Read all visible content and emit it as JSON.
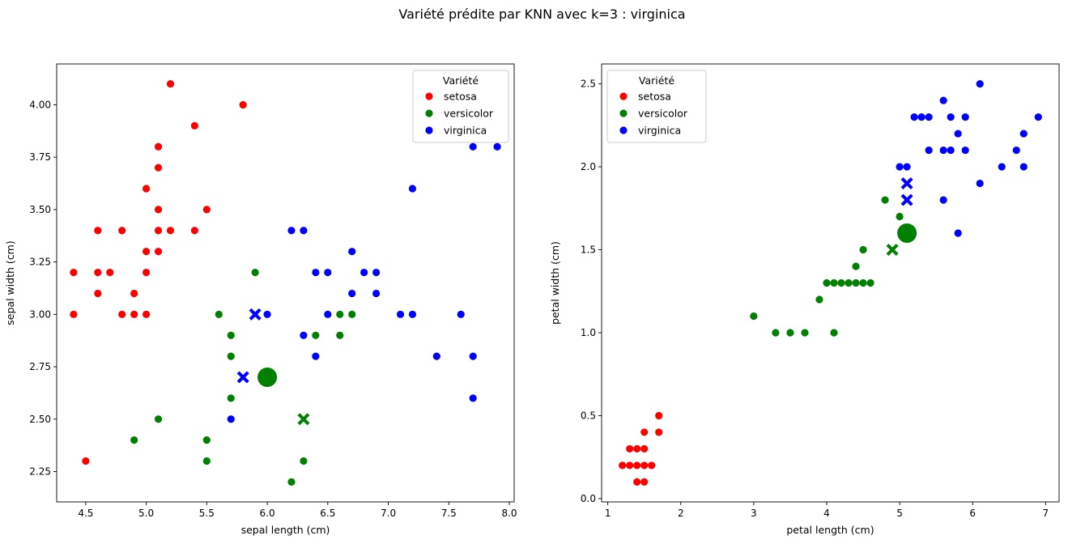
{
  "figure": {
    "title": "Variété prédite par KNN avec k=3 : virginica"
  },
  "colors": {
    "setosa": "#ff0000",
    "versicolor": "#008000",
    "virginica": "#0000ff"
  },
  "chart_data": [
    {
      "type": "scatter",
      "xlabel": "sepal length (cm)",
      "ylabel": "sepal width (cm)",
      "xlim": [
        4.26,
        8.04
      ],
      "ylim": [
        2.105,
        4.195
      ],
      "xticks": [
        "4.5",
        "5.0",
        "5.5",
        "6.0",
        "6.5",
        "7.0",
        "7.5",
        "8.0"
      ],
      "xtick_values": [
        4.5,
        5.0,
        5.5,
        6.0,
        6.5,
        7.0,
        7.5,
        8.0
      ],
      "yticks": [
        "2.25",
        "2.50",
        "2.75",
        "3.00",
        "3.25",
        "3.50",
        "3.75",
        "4.00"
      ],
      "ytick_values": [
        2.25,
        2.5,
        2.75,
        3.0,
        3.25,
        3.5,
        3.75,
        4.0
      ],
      "legend": {
        "title": "Variété",
        "position": "top-right",
        "entries": [
          "setosa",
          "versicolor",
          "virginica"
        ]
      },
      "series": [
        {
          "name": "setosa",
          "color": "#ff0000",
          "points": [
            [
              5.2,
              4.1
            ],
            [
              5.8,
              4.0
            ],
            [
              5.4,
              3.9
            ],
            [
              5.1,
              3.8
            ],
            [
              5.1,
              3.7
            ],
            [
              5.0,
              3.6
            ],
            [
              5.1,
              3.5
            ],
            [
              5.5,
              3.5
            ],
            [
              4.6,
              3.4
            ],
            [
              4.8,
              3.4
            ],
            [
              5.1,
              3.4
            ],
            [
              5.2,
              3.4
            ],
            [
              5.4,
              3.4
            ],
            [
              5.0,
              3.3
            ],
            [
              5.1,
              3.3
            ],
            [
              4.4,
              3.2
            ],
            [
              4.6,
              3.2
            ],
            [
              4.7,
              3.2
            ],
            [
              5.0,
              3.2
            ],
            [
              4.6,
              3.1
            ],
            [
              4.9,
              3.1
            ],
            [
              4.4,
              3.0
            ],
            [
              4.8,
              3.0
            ],
            [
              4.9,
              3.0
            ],
            [
              5.0,
              3.0
            ],
            [
              4.5,
              2.3
            ]
          ]
        },
        {
          "name": "versicolor",
          "color": "#008000",
          "points": [
            [
              5.9,
              3.2
            ],
            [
              5.6,
              3.0
            ],
            [
              6.6,
              3.0
            ],
            [
              6.7,
              3.0
            ],
            [
              5.7,
              2.9
            ],
            [
              6.4,
              2.9
            ],
            [
              6.6,
              2.9
            ],
            [
              5.7,
              2.8
            ],
            [
              5.7,
              2.6
            ],
            [
              5.1,
              2.5
            ],
            [
              4.9,
              2.4
            ],
            [
              5.5,
              2.4
            ],
            [
              5.5,
              2.3
            ],
            [
              6.3,
              2.3
            ],
            [
              6.2,
              2.2
            ]
          ]
        },
        {
          "name": "virginica",
          "color": "#0000ff",
          "points": [
            [
              7.7,
              3.8
            ],
            [
              7.9,
              3.8
            ],
            [
              7.2,
              3.6
            ],
            [
              6.2,
              3.4
            ],
            [
              6.3,
              3.4
            ],
            [
              6.7,
              3.3
            ],
            [
              6.4,
              3.2
            ],
            [
              6.5,
              3.2
            ],
            [
              6.8,
              3.2
            ],
            [
              6.9,
              3.2
            ],
            [
              6.7,
              3.1
            ],
            [
              6.9,
              3.1
            ],
            [
              6.0,
              3.0
            ],
            [
              6.5,
              3.0
            ],
            [
              7.1,
              3.0
            ],
            [
              7.2,
              3.0
            ],
            [
              7.6,
              3.0
            ],
            [
              6.3,
              2.9
            ],
            [
              6.4,
              2.8
            ],
            [
              7.4,
              2.8
            ],
            [
              7.7,
              2.8
            ],
            [
              7.7,
              2.6
            ],
            [
              5.7,
              2.5
            ]
          ]
        }
      ],
      "neighbors": [
        {
          "color": "#0000ff",
          "point": [
            5.9,
            3.0
          ]
        },
        {
          "color": "#0000ff",
          "point": [
            5.8,
            2.7
          ]
        },
        {
          "color": "#008000",
          "point": [
            6.3,
            2.5
          ]
        }
      ],
      "query": {
        "color": "#008000",
        "point": [
          6.0,
          2.7
        ]
      }
    },
    {
      "type": "scatter",
      "xlabel": "petal length (cm)",
      "ylabel": "petal width (cm)",
      "xlim": [
        0.915,
        7.185
      ],
      "ylim": [
        -0.02,
        2.62
      ],
      "xticks": [
        "1",
        "2",
        "3",
        "4",
        "5",
        "6",
        "7"
      ],
      "xtick_values": [
        1,
        2,
        3,
        4,
        5,
        6,
        7
      ],
      "yticks": [
        "0.0",
        "0.5",
        "1.0",
        "1.5",
        "2.0",
        "2.5"
      ],
      "ytick_values": [
        0.0,
        0.5,
        1.0,
        1.5,
        2.0,
        2.5
      ],
      "legend": {
        "title": "Variété",
        "position": "top-left",
        "entries": [
          "setosa",
          "versicolor",
          "virginica"
        ]
      },
      "series": [
        {
          "name": "setosa",
          "color": "#ff0000",
          "points": [
            [
              1.2,
              0.2
            ],
            [
              1.3,
              0.2
            ],
            [
              1.4,
              0.2
            ],
            [
              1.5,
              0.2
            ],
            [
              1.6,
              0.2
            ],
            [
              1.3,
              0.3
            ],
            [
              1.4,
              0.3
            ],
            [
              1.5,
              0.3
            ],
            [
              1.4,
              0.1
            ],
            [
              1.5,
              0.1
            ],
            [
              1.5,
              0.4
            ],
            [
              1.7,
              0.4
            ],
            [
              1.7,
              0.5
            ]
          ]
        },
        {
          "name": "versicolor",
          "color": "#008000",
          "points": [
            [
              3.0,
              1.1
            ],
            [
              3.3,
              1.0
            ],
            [
              3.5,
              1.0
            ],
            [
              3.7,
              1.0
            ],
            [
              4.1,
              1.0
            ],
            [
              3.9,
              1.2
            ],
            [
              4.0,
              1.3
            ],
            [
              4.1,
              1.3
            ],
            [
              4.2,
              1.3
            ],
            [
              4.3,
              1.3
            ],
            [
              4.4,
              1.3
            ],
            [
              4.5,
              1.3
            ],
            [
              4.6,
              1.3
            ],
            [
              4.4,
              1.4
            ],
            [
              4.5,
              1.5
            ],
            [
              5.0,
              1.7
            ],
            [
              4.8,
              1.8
            ]
          ]
        },
        {
          "name": "virginica",
          "color": "#0000ff",
          "points": [
            [
              6.1,
              2.5
            ],
            [
              5.6,
              2.4
            ],
            [
              5.2,
              2.3
            ],
            [
              5.3,
              2.3
            ],
            [
              5.4,
              2.3
            ],
            [
              5.7,
              2.3
            ],
            [
              5.9,
              2.3
            ],
            [
              6.9,
              2.3
            ],
            [
              5.8,
              2.2
            ],
            [
              6.7,
              2.2
            ],
            [
              5.4,
              2.1
            ],
            [
              5.6,
              2.1
            ],
            [
              5.7,
              2.1
            ],
            [
              5.9,
              2.1
            ],
            [
              6.6,
              2.1
            ],
            [
              5.0,
              2.0
            ],
            [
              5.1,
              2.0
            ],
            [
              6.4,
              2.0
            ],
            [
              6.7,
              2.0
            ],
            [
              6.1,
              1.9
            ],
            [
              5.6,
              1.8
            ],
            [
              5.8,
              1.6
            ]
          ]
        }
      ],
      "neighbors": [
        {
          "color": "#0000ff",
          "point": [
            5.1,
            1.9
          ]
        },
        {
          "color": "#0000ff",
          "point": [
            5.1,
            1.8
          ]
        },
        {
          "color": "#008000",
          "point": [
            4.9,
            1.5
          ]
        }
      ],
      "query": {
        "color": "#008000",
        "point": [
          5.1,
          1.6
        ]
      }
    }
  ]
}
